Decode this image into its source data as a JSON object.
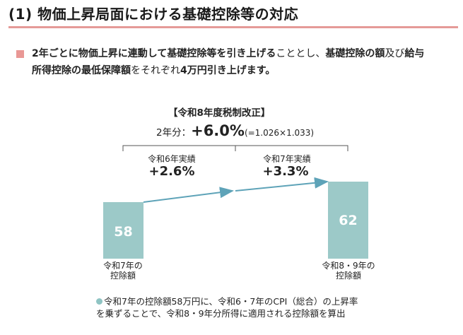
{
  "title": "(1) 物価上昇局面における基礎控除等の対応",
  "lead": {
    "line1_bold_a": "2年ごとに物価上昇に連動して基礎控除等を引き上げる",
    "line1_plain_a": "こととし、",
    "line1_bold_b": "基礎控除の額",
    "line1_plain_b": "及び",
    "line1_bold_c": "給与",
    "line2_bold_a": "所得控除の最低保障額",
    "line2_plain_a": "をそれぞれ",
    "line2_bold_b": "4万円引き上げます。"
  },
  "revision": {
    "heading": "【令和8年度税制改正】",
    "two_year_label": "2年分：",
    "two_year_rate": "+6.0%",
    "two_year_formula": "(=1.026×1.033)"
  },
  "years": [
    {
      "label": "令和6年実績",
      "rate": "+2.6%"
    },
    {
      "label": "令和7年実績",
      "rate": "+3.3%"
    }
  ],
  "chart_data": {
    "type": "bar",
    "categories": [
      "令和7年の控除額",
      "令和8・9年の控除額"
    ],
    "values": [
      58,
      62
    ],
    "value_labels": [
      "58",
      "62"
    ],
    "ylim": [
      0,
      62
    ]
  },
  "bars": [
    {
      "caption_l1": "令和7年の",
      "caption_l2": "控除額"
    },
    {
      "caption_l1": "令和8・9年の",
      "caption_l2": "控除額"
    }
  ],
  "footnote": {
    "line1": "令和7年の控除額58万円に、令和6・7年のCPI（総合）の上昇率",
    "line2": "を乗ずることで、令和8・9年分所得に適用される控除額を算出"
  },
  "colors": {
    "bar": "#9cc9c8",
    "arrow": "#5ea3b8",
    "title_rule": "#e59a98",
    "bullet": "#e99895",
    "bar_value_text": "#ffffff"
  }
}
